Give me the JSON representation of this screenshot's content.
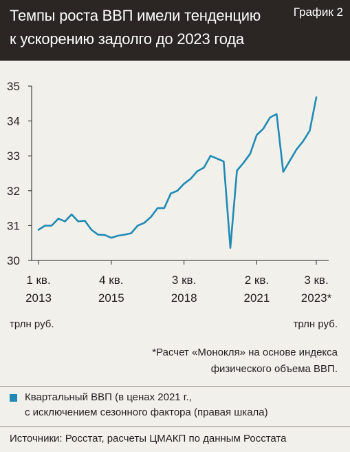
{
  "header": {
    "title_line1": "Темпы роста ВВП имели тенденцию",
    "title_line2": "к ускорению задолго до 2023 года",
    "graph_label": "График 2"
  },
  "colors": {
    "header_bg": "#2b2523",
    "page_bg": "#f2f0eb",
    "series": "#1f8ab5"
  },
  "units": {
    "left": "трлн руб.",
    "right": "трлн руб."
  },
  "footnote": {
    "line1": "*Расчет «Монокля» на основе индекса",
    "line2": "физического объема ВВП."
  },
  "legend": {
    "line1": "Квартальный ВВП (в ценах 2021 г.,",
    "line2": "с исключением сезонного фактора (правая шкала)"
  },
  "sources": "Источники: Росстат, расчеты ЦМАКП по данным Росстата",
  "chart_data": {
    "type": "line",
    "ylim": [
      30,
      35
    ],
    "y_ticks": [
      "30",
      "31",
      "32",
      "33",
      "34",
      "35"
    ],
    "x_ticks": [
      {
        "q": 0,
        "line1": "1 кв.",
        "line2": "2013"
      },
      {
        "q": 11,
        "line1": "4 кв.",
        "line2": "2015"
      },
      {
        "q": 22,
        "line1": "3 кв.",
        "line2": "2018"
      },
      {
        "q": 33,
        "line1": "2 кв.",
        "line2": "2021"
      },
      {
        "q": 42,
        "line1": "3 кв.",
        "line2": "2023*"
      }
    ],
    "grid": false,
    "series": [
      {
        "values": [
          30.88,
          31.0,
          31.0,
          31.2,
          31.12,
          31.32,
          31.12,
          31.14,
          30.88,
          30.74,
          30.73,
          30.65,
          30.71,
          30.74,
          30.78,
          31.0,
          31.08,
          31.25,
          31.5,
          31.5,
          31.92,
          32.0,
          32.2,
          32.34,
          32.56,
          32.66,
          33.0,
          32.92,
          32.84,
          30.36,
          32.58,
          32.8,
          33.06,
          33.6,
          33.78,
          34.1,
          34.2,
          32.54,
          32.86,
          33.18,
          33.42,
          33.72,
          34.68
        ]
      }
    ]
  }
}
